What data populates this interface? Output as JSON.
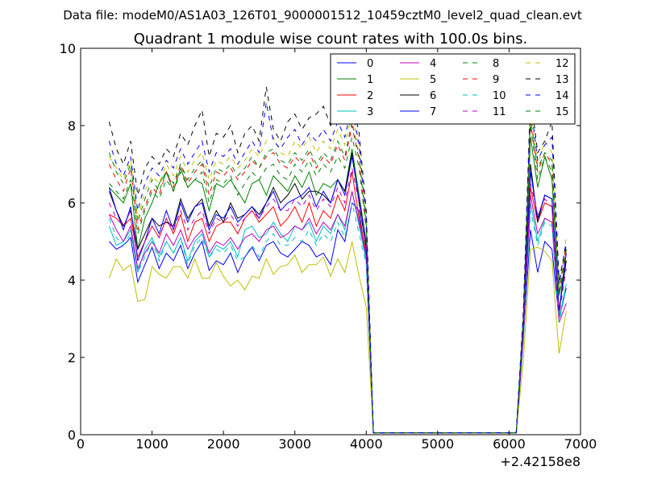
{
  "chart_data": {
    "type": "line",
    "suptitle": "Data file: modeM0/AS1A03_126T01_9000001512_10459cztM0_level2_quad_clean.evt",
    "title": "Quadrant 1 module wise count rates with 100.0s bins.",
    "xlabel": "",
    "ylabel": "",
    "x_offset_label": "+2.42158e8",
    "xlim": [
      0,
      7000
    ],
    "ylim": [
      0,
      10
    ],
    "xticks": [
      "0",
      "1000",
      "2000",
      "3000",
      "4000",
      "5000",
      "6000",
      "7000"
    ],
    "yticks": [
      "0",
      "2",
      "4",
      "6",
      "8",
      "10"
    ],
    "legend_position": "top-right",
    "x": [
      400,
      500,
      600,
      700,
      800,
      900,
      1000,
      1100,
      1200,
      1300,
      1400,
      1500,
      1600,
      1700,
      1800,
      1900,
      2000,
      2100,
      2200,
      2300,
      2400,
      2500,
      2600,
      2700,
      2800,
      2900,
      3000,
      3100,
      3200,
      3300,
      3400,
      3500,
      3600,
      3700,
      3800,
      3900,
      4000,
      4100,
      4200,
      4300,
      4400,
      4500,
      4600,
      4700,
      4800,
      4900,
      5000,
      5100,
      5200,
      5300,
      5400,
      5500,
      5600,
      5700,
      5800,
      5900,
      6000,
      6100,
      6200,
      6300,
      6400,
      6500,
      6600,
      6700,
      6800
    ],
    "series": [
      {
        "name": "0",
        "color": "#0000ff",
        "dash": "solid",
        "values": [
          5.0,
          4.8,
          4.9,
          5.1,
          3.95,
          4.4,
          4.85,
          4.3,
          4.7,
          4.5,
          4.9,
          4.3,
          4.7,
          5.0,
          4.25,
          4.5,
          4.4,
          4.7,
          4.2,
          4.6,
          4.85,
          4.5,
          4.9,
          5.0,
          4.7,
          4.6,
          4.8,
          5.0,
          4.9,
          4.6,
          4.7,
          4.4,
          5.3,
          5.0,
          6.0,
          5.8,
          4.5,
          0.05,
          0.05,
          0.05,
          0.05,
          0.05,
          0.05,
          0.05,
          0.05,
          0.05,
          0.05,
          0.05,
          0.05,
          0.05,
          0.05,
          0.05,
          0.05,
          0.05,
          0.05,
          0.05,
          0.05,
          0.05,
          2.5,
          5.3,
          4.2,
          5.0,
          4.8,
          3.0,
          3.8
        ]
      },
      {
        "name": "1",
        "color": "#008000",
        "dash": "solid",
        "values": [
          6.4,
          6.2,
          6.0,
          6.5,
          4.8,
          5.6,
          6.0,
          6.5,
          6.8,
          6.3,
          6.9,
          6.4,
          6.6,
          6.5,
          5.8,
          6.5,
          6.4,
          6.6,
          6.3,
          6.0,
          6.5,
          6.6,
          6.2,
          6.7,
          6.5,
          6.3,
          6.7,
          6.4,
          6.8,
          6.2,
          6.5,
          6.4,
          6.6,
          6.3,
          7.4,
          6.2,
          5.0,
          0.05,
          0.05,
          0.05,
          0.05,
          0.05,
          0.05,
          0.05,
          0.05,
          0.05,
          0.05,
          0.05,
          0.05,
          0.05,
          0.05,
          0.05,
          0.05,
          0.05,
          0.05,
          0.05,
          0.05,
          0.05,
          2.9,
          7.7,
          6.4,
          7.2,
          6.6,
          3.6,
          4.5
        ]
      },
      {
        "name": "2",
        "color": "#ff0000",
        "dash": "solid",
        "values": [
          5.7,
          5.6,
          5.4,
          5.6,
          4.6,
          5.0,
          5.4,
          5.1,
          5.6,
          5.2,
          5.7,
          5.0,
          5.5,
          5.6,
          5.0,
          5.4,
          5.5,
          5.5,
          5.2,
          5.6,
          5.8,
          5.5,
          5.7,
          5.9,
          5.4,
          5.6,
          5.9,
          5.5,
          6.0,
          5.4,
          5.8,
          5.6,
          6.2,
          5.8,
          6.8,
          5.6,
          4.7,
          0.05,
          0.05,
          0.05,
          0.05,
          0.05,
          0.05,
          0.05,
          0.05,
          0.05,
          0.05,
          0.05,
          0.05,
          0.05,
          0.05,
          0.05,
          0.05,
          0.05,
          0.05,
          0.05,
          0.05,
          0.05,
          2.6,
          6.4,
          5.5,
          6.0,
          5.9,
          3.1,
          4.8
        ]
      },
      {
        "name": "3",
        "color": "#00bfbf",
        "dash": "solid",
        "values": [
          5.4,
          4.9,
          5.0,
          5.3,
          4.2,
          4.8,
          5.1,
          4.6,
          5.0,
          4.7,
          5.1,
          4.5,
          5.0,
          5.2,
          4.6,
          4.9,
          4.8,
          5.0,
          4.6,
          5.3,
          5.4,
          5.1,
          5.2,
          5.5,
          5.2,
          5.0,
          5.4,
          5.3,
          5.5,
          5.0,
          5.4,
          5.2,
          5.7,
          5.3,
          6.3,
          5.4,
          4.5,
          0.05,
          0.05,
          0.05,
          0.05,
          0.05,
          0.05,
          0.05,
          0.05,
          0.05,
          0.05,
          0.05,
          0.05,
          0.05,
          0.05,
          0.05,
          0.05,
          0.05,
          0.05,
          0.05,
          0.05,
          0.05,
          2.5,
          6.0,
          5.0,
          5.6,
          5.5,
          3.0,
          3.9
        ]
      },
      {
        "name": "4",
        "color": "#bf00bf",
        "dash": "solid",
        "values": [
          5.7,
          5.3,
          5.0,
          5.4,
          4.3,
          4.7,
          5.0,
          4.7,
          5.2,
          4.9,
          5.3,
          4.8,
          5.1,
          5.3,
          4.7,
          5.0,
          4.9,
          5.1,
          4.8,
          5.1,
          5.2,
          5.0,
          5.3,
          5.4,
          5.1,
          5.2,
          5.4,
          5.3,
          5.6,
          5.2,
          5.5,
          5.3,
          5.7,
          5.4,
          6.3,
          5.5,
          4.6,
          0.05,
          0.05,
          0.05,
          0.05,
          0.05,
          0.05,
          0.05,
          0.05,
          0.05,
          0.05,
          0.05,
          0.05,
          0.05,
          0.05,
          0.05,
          0.05,
          0.05,
          0.05,
          0.05,
          0.05,
          0.05,
          2.5,
          6.2,
          5.2,
          5.6,
          5.5,
          2.9,
          3.4
        ]
      },
      {
        "name": "5",
        "color": "#bfbf00",
        "dash": "solid",
        "values": [
          4.05,
          4.55,
          4.25,
          4.4,
          3.45,
          3.5,
          4.35,
          4.15,
          4.05,
          4.35,
          4.35,
          4.05,
          4.55,
          4.05,
          4.05,
          4.45,
          4.1,
          3.85,
          4.0,
          3.75,
          4.1,
          4.05,
          4.55,
          4.15,
          4.35,
          4.4,
          4.65,
          4.2,
          4.4,
          4.4,
          4.6,
          4.1,
          4.55,
          4.2,
          5.0,
          4.1,
          3.3,
          0.05,
          0.05,
          0.05,
          0.05,
          0.05,
          0.05,
          0.05,
          0.05,
          0.05,
          0.05,
          0.05,
          0.05,
          0.05,
          0.05,
          0.05,
          0.05,
          0.05,
          0.05,
          0.05,
          0.05,
          0.05,
          1.9,
          4.8,
          4.85,
          4.75,
          4.5,
          2.1,
          3.2
        ]
      },
      {
        "name": "6",
        "color": "#000000",
        "dash": "solid",
        "values": [
          6.3,
          5.8,
          5.4,
          5.8,
          4.8,
          5.2,
          5.6,
          5.4,
          5.5,
          5.4,
          6.1,
          5.6,
          5.9,
          6.1,
          5.4,
          5.8,
          5.5,
          6.0,
          5.6,
          5.7,
          5.9,
          5.7,
          6.0,
          6.4,
          6.0,
          6.2,
          6.5,
          6.1,
          6.3,
          6.3,
          6.2,
          6.0,
          6.6,
          6.3,
          7.3,
          6.0,
          4.8,
          0.05,
          0.05,
          0.05,
          0.05,
          0.05,
          0.05,
          0.05,
          0.05,
          0.05,
          0.05,
          0.05,
          0.05,
          0.05,
          0.05,
          0.05,
          0.05,
          0.05,
          0.05,
          0.05,
          0.05,
          0.05,
          2.8,
          7.0,
          5.5,
          6.2,
          6.1,
          3.2,
          4.5
        ]
      },
      {
        "name": "7",
        "color": "#0000ff",
        "dash": "solid",
        "values": [
          6.4,
          5.8,
          5.3,
          5.9,
          4.5,
          5.0,
          5.6,
          5.2,
          5.8,
          5.3,
          6.0,
          5.5,
          5.9,
          6.0,
          5.3,
          5.7,
          5.6,
          5.9,
          5.5,
          5.7,
          5.9,
          5.6,
          6.0,
          6.3,
          5.8,
          6.0,
          6.1,
          6.2,
          6.4,
          5.9,
          6.3,
          6.0,
          6.6,
          6.2,
          7.2,
          6.1,
          4.9,
          0.05,
          0.05,
          0.05,
          0.05,
          0.05,
          0.05,
          0.05,
          0.05,
          0.05,
          0.05,
          0.05,
          0.05,
          0.05,
          0.05,
          0.05,
          0.05,
          0.05,
          0.05,
          0.05,
          0.05,
          0.05,
          2.8,
          6.8,
          5.6,
          6.2,
          6.1,
          3.2,
          4.7
        ]
      },
      {
        "name": "8",
        "color": "#008000",
        "dash": "dashed",
        "values": [
          6.5,
          6.3,
          6.1,
          6.6,
          5.2,
          5.8,
          6.3,
          6.1,
          6.6,
          6.3,
          6.8,
          6.4,
          6.6,
          6.8,
          6.0,
          6.6,
          6.5,
          6.7,
          6.2,
          6.5,
          6.8,
          6.6,
          6.9,
          7.0,
          6.7,
          6.6,
          7.0,
          6.8,
          7.1,
          6.7,
          7.0,
          6.8,
          7.2,
          6.9,
          7.7,
          6.9,
          5.3,
          0.05,
          0.05,
          0.05,
          0.05,
          0.05,
          0.05,
          0.05,
          0.05,
          0.05,
          0.05,
          0.05,
          0.05,
          0.05,
          0.05,
          0.05,
          0.05,
          0.05,
          0.05,
          0.05,
          0.05,
          0.05,
          3.0,
          8.0,
          6.6,
          7.2,
          6.8,
          3.6,
          4.8
        ]
      },
      {
        "name": "9",
        "color": "#ff0000",
        "dash": "dashed",
        "values": [
          7.0,
          6.6,
          6.3,
          6.9,
          5.3,
          5.9,
          6.4,
          6.2,
          6.8,
          6.4,
          7.0,
          6.5,
          6.8,
          7.0,
          6.2,
          6.8,
          6.7,
          6.9,
          6.6,
          6.8,
          7.1,
          6.9,
          7.2,
          7.3,
          7.0,
          6.9,
          7.2,
          7.0,
          7.3,
          6.9,
          7.2,
          7.0,
          7.5,
          7.1,
          8.0,
          7.1,
          5.4,
          0.05,
          0.05,
          0.05,
          0.05,
          0.05,
          0.05,
          0.05,
          0.05,
          0.05,
          0.05,
          0.05,
          0.05,
          0.05,
          0.05,
          0.05,
          0.05,
          0.05,
          0.05,
          0.05,
          0.05,
          0.05,
          3.0,
          8.1,
          6.8,
          7.3,
          7.0,
          3.7,
          4.9
        ]
      },
      {
        "name": "10",
        "color": "#00bfbf",
        "dash": "dashed",
        "values": [
          5.6,
          5.1,
          4.9,
          5.2,
          4.2,
          4.6,
          5.0,
          4.5,
          5.0,
          4.7,
          5.1,
          4.4,
          4.9,
          5.1,
          4.6,
          4.8,
          4.7,
          4.9,
          4.5,
          4.6,
          4.9,
          4.6,
          5.0,
          5.2,
          4.9,
          4.9,
          5.1,
          5.0,
          5.3,
          4.9,
          5.2,
          5.0,
          5.5,
          5.1,
          6.0,
          5.2,
          4.4,
          0.05,
          0.05,
          0.05,
          0.05,
          0.05,
          0.05,
          0.05,
          0.05,
          0.05,
          0.05,
          0.05,
          0.05,
          0.05,
          0.05,
          0.05,
          0.05,
          0.05,
          0.05,
          0.05,
          0.05,
          0.05,
          2.4,
          5.8,
          4.9,
          5.5,
          5.4,
          2.9,
          3.8
        ]
      },
      {
        "name": "11",
        "color": "#bf00bf",
        "dash": "dashed",
        "values": [
          6.0,
          5.6,
          5.4,
          5.8,
          4.6,
          5.0,
          5.4,
          5.1,
          5.6,
          5.3,
          5.8,
          5.3,
          5.6,
          5.8,
          5.2,
          5.6,
          5.5,
          5.7,
          5.4,
          5.6,
          5.8,
          5.6,
          5.9,
          6.1,
          5.8,
          5.8,
          6.1,
          5.9,
          6.2,
          5.8,
          6.1,
          5.9,
          6.4,
          6.0,
          6.9,
          6.0,
          4.9,
          0.05,
          0.05,
          0.05,
          0.05,
          0.05,
          0.05,
          0.05,
          0.05,
          0.05,
          0.05,
          0.05,
          0.05,
          0.05,
          0.05,
          0.05,
          0.05,
          0.05,
          0.05,
          0.05,
          0.05,
          0.05,
          2.6,
          6.5,
          5.7,
          6.1,
          5.9,
          3.1,
          4.3
        ]
      },
      {
        "name": "12",
        "color": "#bfbf00",
        "dash": "dashed",
        "values": [
          7.2,
          6.9,
          6.6,
          7.1,
          5.6,
          6.3,
          6.7,
          6.5,
          7.0,
          6.7,
          7.2,
          6.8,
          7.1,
          7.3,
          6.6,
          7.1,
          7.0,
          7.2,
          6.9,
          7.1,
          7.4,
          7.2,
          7.6,
          7.7,
          7.3,
          7.2,
          7.6,
          7.4,
          7.7,
          7.3,
          7.6,
          7.4,
          7.9,
          7.5,
          8.3,
          7.4,
          5.5,
          0.05,
          0.05,
          0.05,
          0.05,
          0.05,
          0.05,
          0.05,
          0.05,
          0.05,
          0.05,
          0.05,
          0.05,
          0.05,
          0.05,
          0.05,
          0.05,
          0.05,
          0.05,
          0.05,
          0.05,
          0.05,
          3.1,
          8.4,
          7.0,
          7.6,
          7.3,
          3.8,
          5.1
        ]
      },
      {
        "name": "13",
        "color": "#000000",
        "dash": "dashed",
        "values": [
          8.1,
          7.4,
          7.0,
          7.6,
          6.2,
          6.9,
          7.2,
          7.0,
          7.4,
          7.2,
          7.8,
          7.5,
          8.0,
          8.4,
          7.2,
          7.8,
          7.7,
          8.0,
          7.3,
          7.8,
          8.0,
          7.6,
          9.0,
          7.9,
          7.6,
          8.1,
          8.3,
          7.9,
          8.2,
          8.3,
          8.5,
          8.0,
          8.6,
          8.1,
          8.7,
          7.8,
          5.8,
          0.05,
          0.05,
          0.05,
          0.05,
          0.05,
          0.05,
          0.05,
          0.05,
          0.05,
          0.05,
          0.05,
          0.05,
          0.05,
          0.05,
          0.05,
          0.05,
          0.05,
          0.05,
          0.05,
          0.05,
          0.05,
          3.2,
          8.8,
          7.3,
          7.6,
          8.1,
          4.0,
          4.9
        ]
      },
      {
        "name": "14",
        "color": "#0000ff",
        "dash": "dashed",
        "values": [
          7.6,
          7.0,
          6.7,
          7.2,
          5.8,
          6.5,
          6.9,
          6.7,
          7.1,
          6.9,
          7.4,
          7.0,
          7.3,
          7.6,
          6.8,
          7.3,
          7.2,
          7.4,
          7.0,
          7.3,
          7.6,
          7.3,
          8.6,
          7.6,
          7.4,
          7.7,
          7.9,
          7.5,
          7.8,
          7.6,
          7.9,
          7.6,
          8.1,
          7.7,
          8.5,
          7.5,
          5.6,
          0.05,
          0.05,
          0.05,
          0.05,
          0.05,
          0.05,
          0.05,
          0.05,
          0.05,
          0.05,
          0.05,
          0.05,
          0.05,
          0.05,
          0.05,
          0.05,
          0.05,
          0.05,
          0.05,
          0.05,
          0.05,
          3.1,
          8.6,
          7.1,
          7.5,
          7.7,
          3.9,
          5.0
        ]
      },
      {
        "name": "15",
        "color": "#008000",
        "dash": "dashed",
        "values": [
          7.3,
          6.8,
          6.5,
          7.0,
          5.5,
          6.1,
          6.6,
          6.3,
          6.8,
          6.5,
          7.0,
          6.6,
          6.9,
          7.1,
          6.4,
          6.9,
          6.8,
          7.0,
          6.7,
          6.9,
          7.2,
          6.9,
          7.3,
          7.4,
          7.1,
          7.0,
          7.3,
          7.1,
          7.4,
          7.0,
          7.3,
          7.1,
          7.6,
          7.2,
          8.1,
          7.2,
          5.4,
          0.05,
          0.05,
          0.05,
          0.05,
          0.05,
          0.05,
          0.05,
          0.05,
          0.05,
          0.05,
          0.05,
          0.05,
          0.05,
          0.05,
          0.05,
          0.05,
          0.05,
          0.05,
          0.05,
          0.05,
          0.05,
          3.0,
          8.2,
          6.9,
          7.3,
          7.1,
          3.7,
          4.8
        ]
      }
    ]
  }
}
